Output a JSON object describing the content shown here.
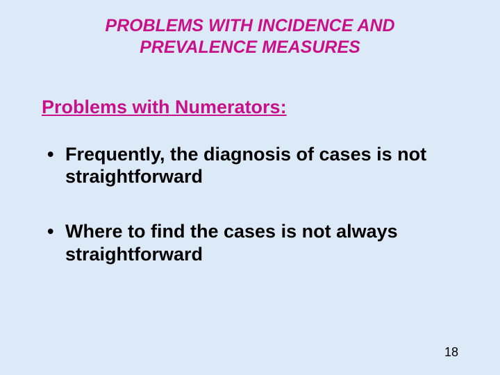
{
  "slide": {
    "background_color": "#dceaf7",
    "title": {
      "line1": "PROBLEMS WITH INCIDENCE AND",
      "line2": "PREVALENCE MEASURES",
      "color": "#c8108a",
      "fontsize": 25
    },
    "subtitle": {
      "text": "Problems with Numerators:",
      "color": "#c8108a",
      "fontsize": 27
    },
    "bullets": [
      {
        "text": "Frequently, the diagnosis of cases is not straightforward"
      },
      {
        "text": "Where to find the cases is not always straightforward"
      }
    ],
    "bullet_fontsize": 27,
    "page_number": "18"
  }
}
